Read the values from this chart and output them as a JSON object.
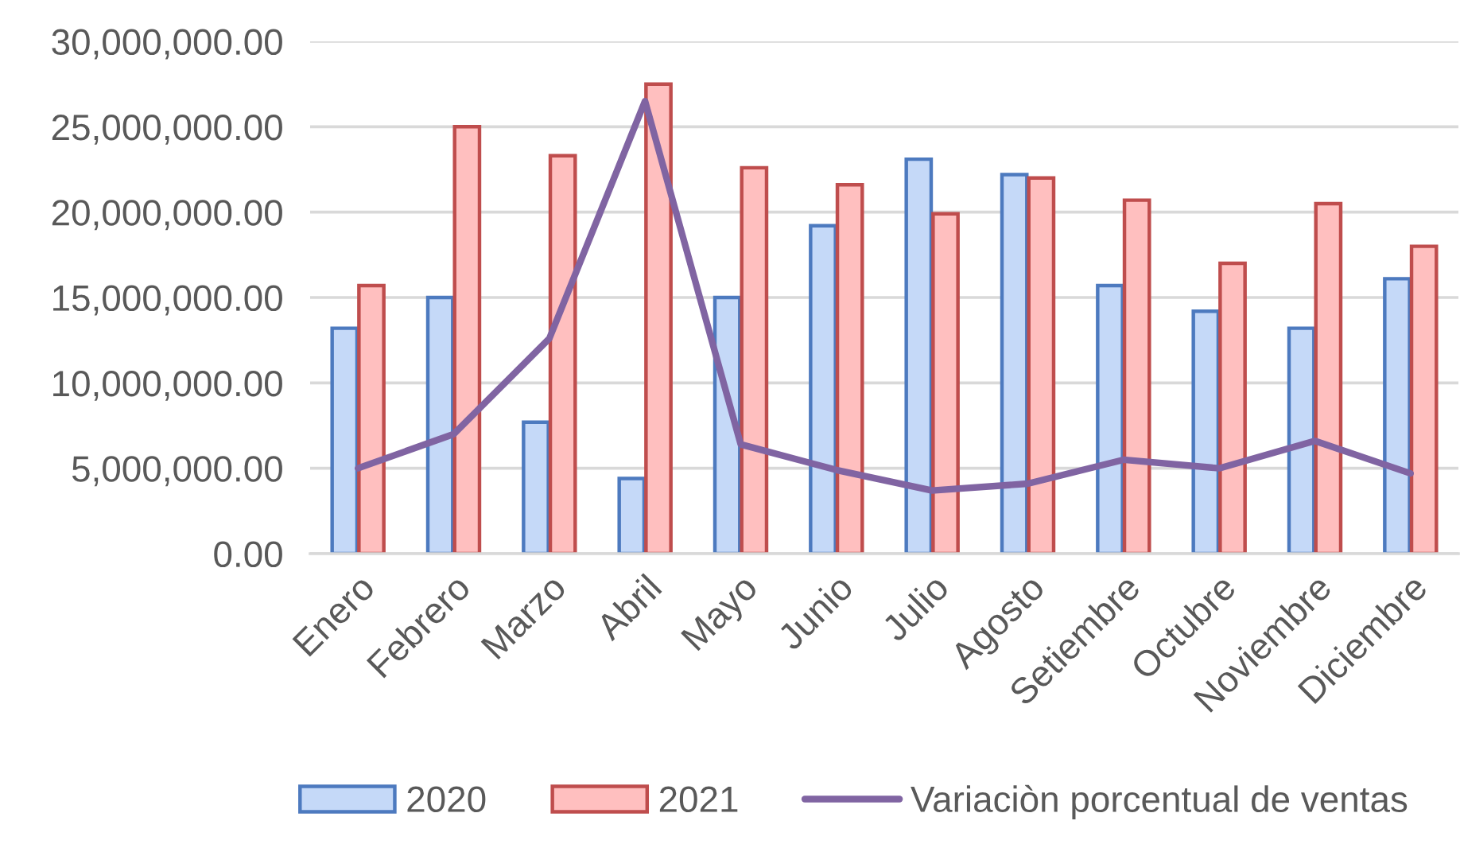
{
  "chart_data": {
    "type": "bar",
    "categories": [
      "Enero",
      "Febrero",
      "Marzo",
      "Abril",
      "Mayo",
      "Junio",
      "Julio",
      "Agosto",
      "Setiembre",
      "Octubre",
      "Noviembre",
      "Diciembre"
    ],
    "series": [
      {
        "name": "2020",
        "color": "#c5d9f8",
        "values": [
          13200000,
          15000000,
          7700000,
          4400000,
          15000000,
          19200000,
          23100000,
          22200000,
          15700000,
          14200000,
          13200000,
          16100000
        ]
      },
      {
        "name": "2021",
        "color": "#ffbfbf",
        "values": [
          15700000,
          25000000,
          23300000,
          27500000,
          22600000,
          21600000,
          19900000,
          22000000,
          20700000,
          17000000,
          20500000,
          18000000
        ]
      },
      {
        "name": "Variaciòn porcentual de ventas",
        "type": "line",
        "color": "#8064a2",
        "values": [
          5000000,
          7000000,
          12600000,
          26500000,
          6400000,
          4900000,
          3700000,
          4100000,
          5500000,
          5000000,
          6600000,
          4700000
        ]
      }
    ],
    "ylim": [
      0,
      30000000
    ],
    "yticks": [
      {
        "value": 0,
        "label": "0.00"
      },
      {
        "value": 5000000,
        "label": "5,000,000.00"
      },
      {
        "value": 10000000,
        "label": "10,000,000.00"
      },
      {
        "value": 15000000,
        "label": "15,000,000.00"
      },
      {
        "value": 20000000,
        "label": "20,000,000.00"
      },
      {
        "value": 25000000,
        "label": "25,000,000.00"
      },
      {
        "value": 30000000,
        "label": "30,000,000.00"
      }
    ],
    "grid": "y",
    "legend": "bottom"
  }
}
